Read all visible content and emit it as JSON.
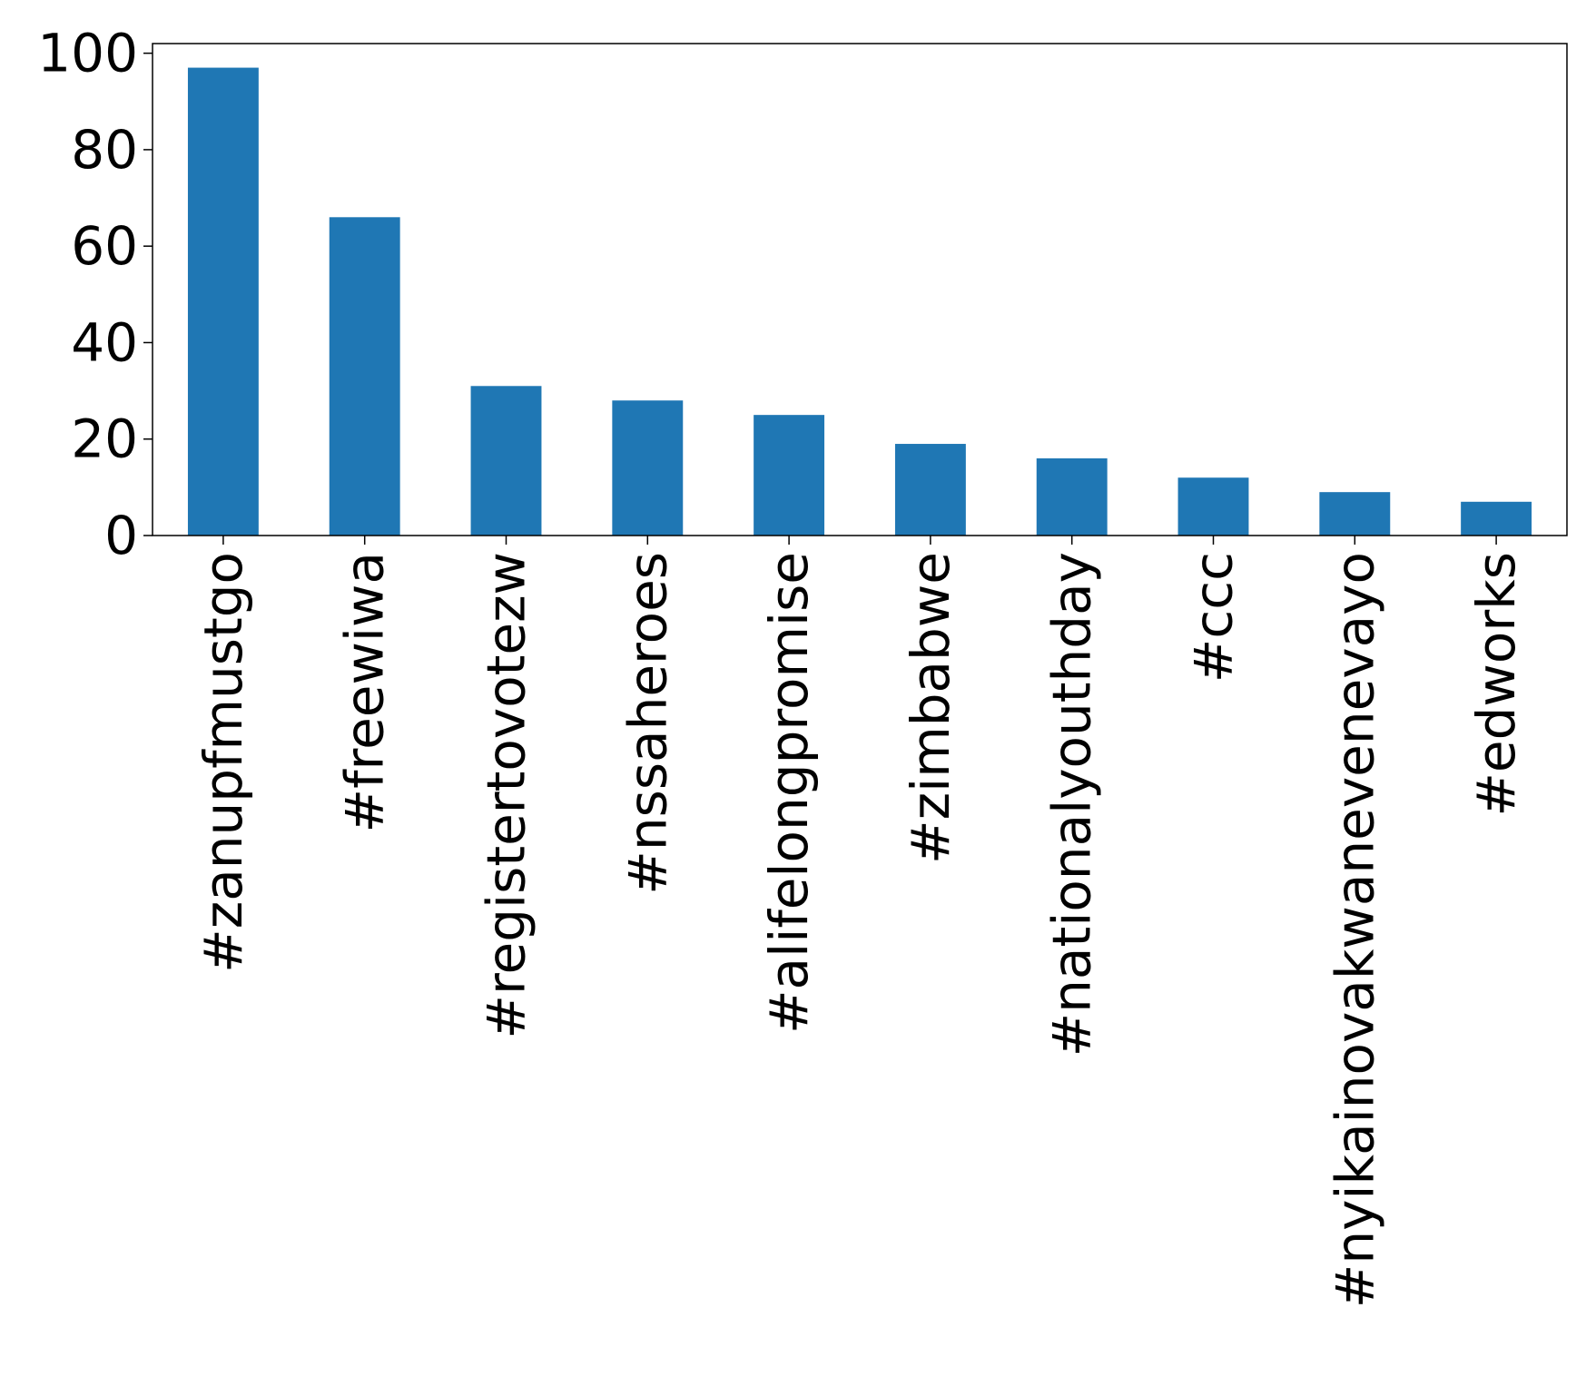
{
  "chart_data": {
    "type": "bar",
    "title": "",
    "xlabel": "",
    "ylabel": "",
    "categories": [
      "#zanupfmustgo",
      "#freewiwa",
      "#registertovotezw",
      "#nssaheroes",
      "#alifelongpromise",
      "#zimbabwe",
      "#nationalyouthday",
      "#ccc",
      "#nyikainovakwanevenevayo",
      "#edworks"
    ],
    "values": [
      97,
      66,
      31,
      28,
      25,
      19,
      16,
      12,
      9,
      7
    ],
    "ylim": [
      0,
      102
    ],
    "yticks": [
      0,
      20,
      40,
      60,
      80,
      100
    ],
    "grid": false,
    "legend": "none",
    "colors": {
      "bar": "#1f77b4",
      "axis": "#000000",
      "background": "#ffffff"
    }
  }
}
